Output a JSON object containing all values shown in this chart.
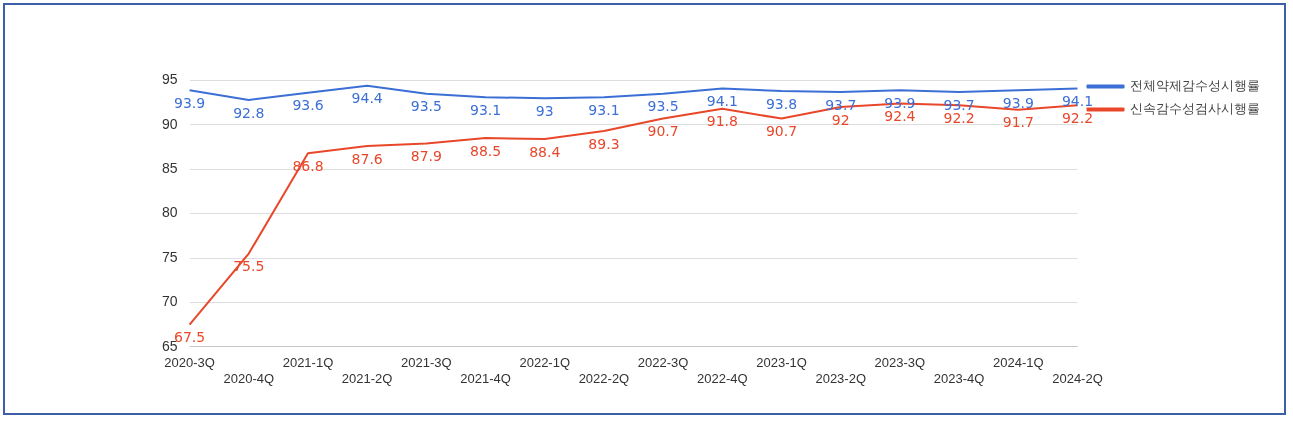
{
  "chart_data": {
    "type": "line",
    "categories": [
      "2020-3Q",
      "2020-4Q",
      "2021-1Q",
      "2021-2Q",
      "2021-3Q",
      "2021-4Q",
      "2022-1Q",
      "2022-2Q",
      "2022-3Q",
      "2022-4Q",
      "2023-1Q",
      "2023-2Q",
      "2023-3Q",
      "2023-4Q",
      "2024-1Q",
      "2024-2Q"
    ],
    "series": [
      {
        "name": "전체약제감수성시행률",
        "color": "#3c6fd6",
        "values": [
          93.9,
          92.8,
          93.6,
          94.4,
          93.5,
          93.1,
          93,
          93.1,
          93.5,
          94.1,
          93.8,
          93.7,
          93.9,
          93.7,
          93.9,
          94.1
        ]
      },
      {
        "name": "신속감수성검사시행률",
        "color": "#e8472a",
        "values": [
          67.5,
          75.5,
          86.8,
          87.6,
          87.9,
          88.5,
          88.4,
          89.3,
          90.7,
          91.8,
          90.7,
          92,
          92.4,
          92.2,
          91.7,
          92.2
        ]
      }
    ],
    "ylim": [
      65,
      95
    ],
    "yticks": [
      65,
      70,
      75,
      80,
      85,
      90,
      95
    ],
    "grid": "y",
    "legend": "right",
    "data_labels": true,
    "marker": "none",
    "line_style": "solid"
  }
}
